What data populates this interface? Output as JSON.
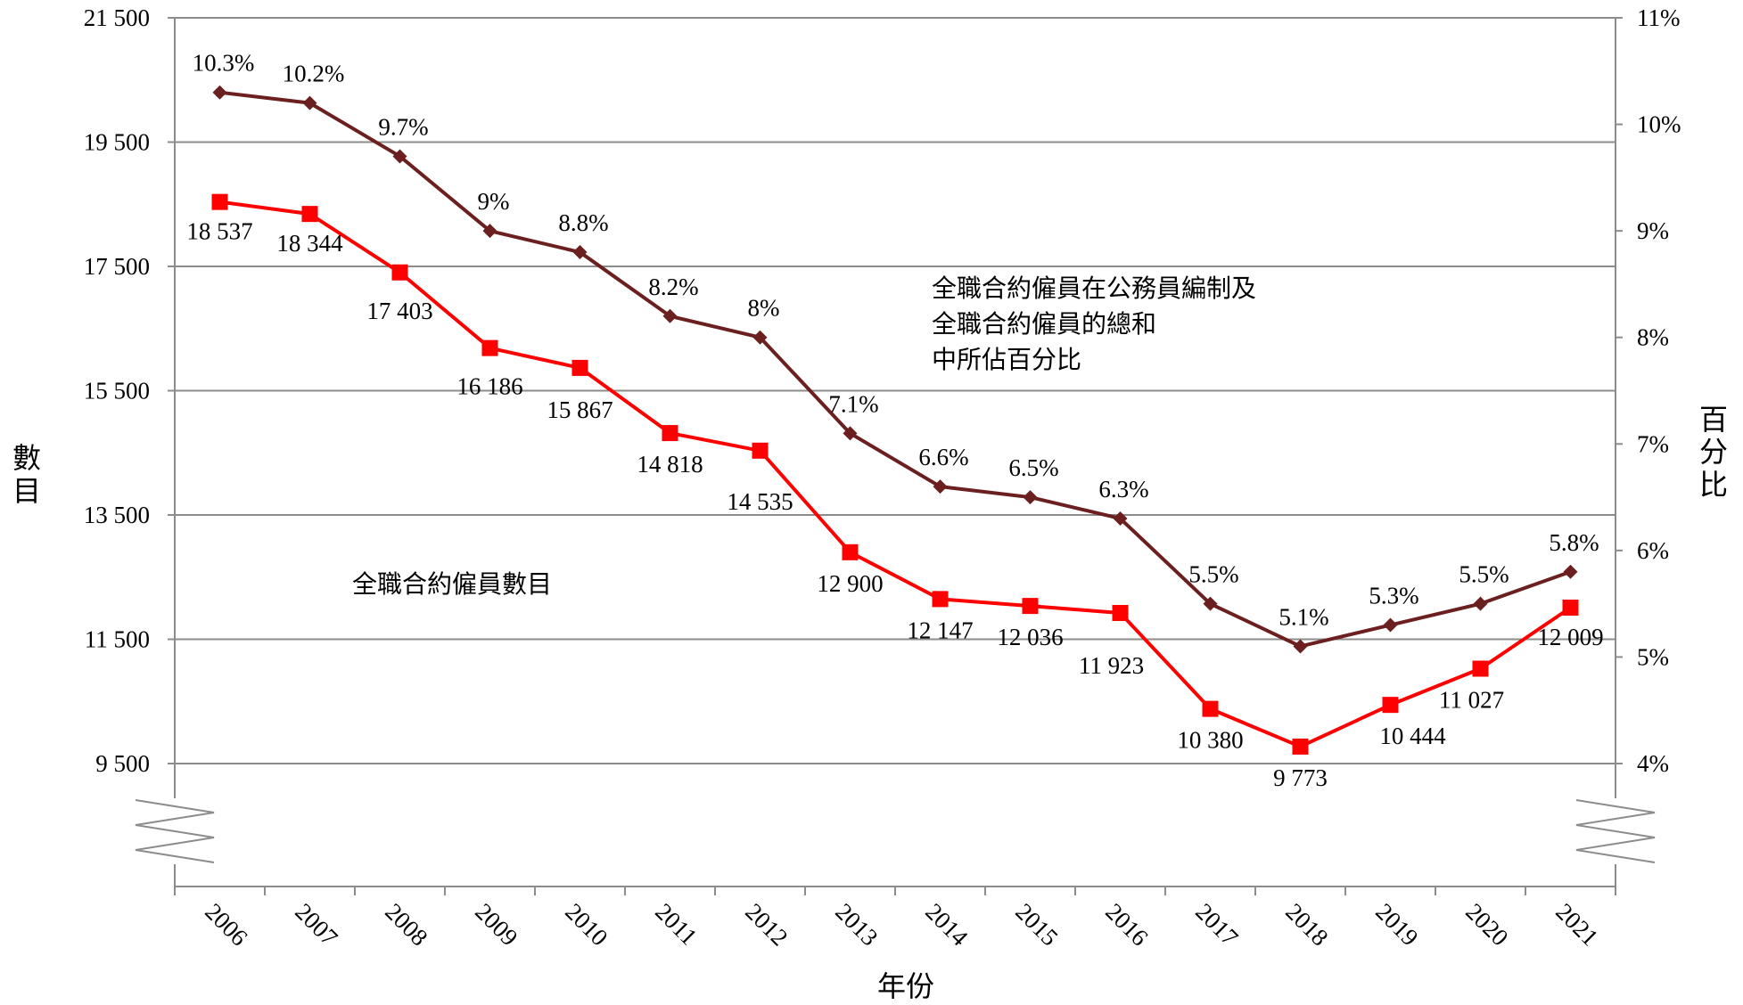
{
  "chart_data": {
    "type": "line",
    "categories": [
      "2006",
      "2007",
      "2008",
      "2009",
      "2010",
      "2011",
      "2012",
      "2013",
      "2014",
      "2015",
      "2016",
      "2017",
      "2018",
      "2019",
      "2020",
      "2021"
    ],
    "xlabel": "年份",
    "ylabel_left": "數目",
    "ylabel_right": "百分比",
    "left_axis": {
      "ticks": [
        9500,
        11500,
        13500,
        15500,
        17500,
        19500,
        21500
      ],
      "tick_labels": [
        "9 500",
        "11 500",
        "13 500",
        "15 500",
        "17 500",
        "19 500",
        "21 500"
      ],
      "range": [
        9500,
        21500
      ],
      "axis_break": true
    },
    "right_axis": {
      "ticks": [
        4,
        5,
        6,
        7,
        8,
        9,
        10,
        11
      ],
      "tick_labels": [
        "4%",
        "5%",
        "6%",
        "7%",
        "8%",
        "9%",
        "10%",
        "11%"
      ],
      "range": [
        4,
        11
      ],
      "unit": "percent",
      "axis_break": true
    },
    "grid": true,
    "series": [
      {
        "name": "全職合約僱員數目",
        "axis": "left",
        "color": "#ff0000",
        "marker": "square",
        "values": [
          18537,
          18344,
          17403,
          16186,
          15867,
          14818,
          14535,
          12900,
          12147,
          12036,
          11923,
          10380,
          9773,
          10444,
          11027,
          12009
        ],
        "labels": [
          "18 537",
          "18 344",
          "17 403",
          "16 186",
          "15 867",
          "14 818",
          "14 535",
          "12 900",
          "12 147",
          "12 036",
          "11 923",
          "10 380",
          "9 773",
          "10 444",
          "11 027",
          "12 009"
        ]
      },
      {
        "name_lines": [
          "全職合約僱員在公務員編制及",
          "全職合約僱員的總和",
          "中所佔百分比"
        ],
        "axis": "right",
        "color": "#6b1f1f",
        "marker": "diamond",
        "values": [
          10.3,
          10.2,
          9.7,
          9.0,
          8.8,
          8.2,
          8.0,
          7.1,
          6.6,
          6.5,
          6.3,
          5.5,
          5.1,
          5.3,
          5.5,
          5.8
        ],
        "labels": [
          "10.3%",
          "10.2%",
          "9.7%",
          "9%",
          "8.8%",
          "8.2%",
          "8%",
          "7.1%",
          "6.6%",
          "6.5%",
          "6.3%",
          "5.5%",
          "5.1%",
          "5.3%",
          "5.5%",
          "5.8%"
        ]
      }
    ]
  }
}
